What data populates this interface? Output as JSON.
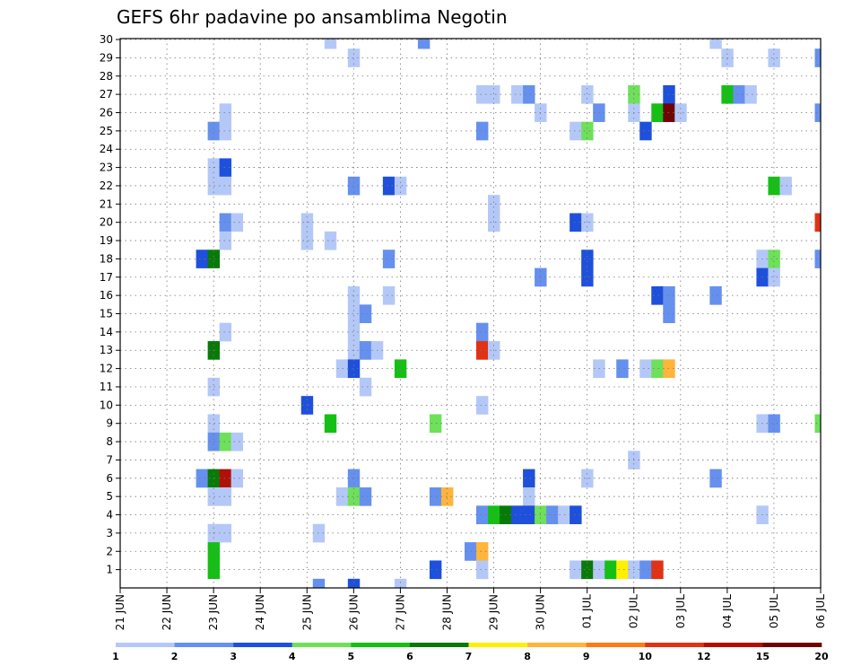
{
  "chart_data": {
    "type": "heatmap",
    "title": "GEFS 6hr padavine po ansamblima Negotin",
    "y_member_labels": [
      "1",
      "2",
      "3",
      "4",
      "5",
      "6",
      "7",
      "8",
      "9",
      "10",
      "11",
      "12",
      "13",
      "14",
      "15",
      "16",
      "17",
      "18",
      "19",
      "20",
      "21",
      "22",
      "23",
      "24",
      "25",
      "26",
      "27",
      "28",
      "29",
      "30"
    ],
    "x_tick_labels": [
      "21 JUN",
      "22 JUN",
      "23 JUN",
      "24 JUN",
      "25 JUN",
      "26 JUN",
      "27 JUN",
      "28 JUN",
      "29 JUN",
      "30 JUN",
      "01 JUL",
      "02 JUL",
      "03 JUL",
      "04 JUL",
      "05 JUL",
      "06 JUL"
    ],
    "colorbar_labels": [
      "1",
      "2",
      "3",
      "4",
      "5",
      "6",
      "7",
      "8",
      "9",
      "10",
      "12",
      "15",
      "20"
    ],
    "bin_colors": [
      "#b4c8f8",
      "#6690ee",
      "#1e50dc",
      "#6ee05a",
      "#14c014",
      "#087a08",
      "#fff000",
      "#ffb43c",
      "#ff7a14",
      "#e03214",
      "#b01008",
      "#6e0404"
    ],
    "grid": true,
    "cells": [
      {
        "member": 30,
        "day": 4.5,
        "bin": 0
      },
      {
        "member": 30,
        "day": 6.5,
        "bin": 1
      },
      {
        "member": 30,
        "day": 12.75,
        "bin": 0
      },
      {
        "member": 29,
        "day": 5.0,
        "bin": 0
      },
      {
        "member": 29,
        "day": 13.0,
        "bin": 0
      },
      {
        "member": 29,
        "day": 14.0,
        "bin": 0
      },
      {
        "member": 29,
        "day": 15.0,
        "bin": 1
      },
      {
        "member": 27,
        "day": 7.75,
        "bin": 0
      },
      {
        "member": 27,
        "day": 8.0,
        "bin": 0
      },
      {
        "member": 27,
        "day": 8.5,
        "bin": 0
      },
      {
        "member": 27,
        "day": 8.75,
        "bin": 1
      },
      {
        "member": 27,
        "day": 10.0,
        "bin": 0
      },
      {
        "member": 27,
        "day": 11.0,
        "bin": 3
      },
      {
        "member": 27,
        "day": 11.75,
        "bin": 2
      },
      {
        "member": 27,
        "day": 13.0,
        "bin": 4
      },
      {
        "member": 27,
        "day": 13.25,
        "bin": 1
      },
      {
        "member": 27,
        "day": 13.5,
        "bin": 0
      },
      {
        "member": 26,
        "day": 2.25,
        "bin": 0
      },
      {
        "member": 26,
        "day": 9.0,
        "bin": 0
      },
      {
        "member": 26,
        "day": 10.25,
        "bin": 1
      },
      {
        "member": 26,
        "day": 11.0,
        "bin": 0
      },
      {
        "member": 26,
        "day": 11.5,
        "bin": 4
      },
      {
        "member": 26,
        "day": 11.75,
        "bin": 11
      },
      {
        "member": 26,
        "day": 12.0,
        "bin": 0
      },
      {
        "member": 26,
        "day": 15.0,
        "bin": 1
      },
      {
        "member": 25,
        "day": 2.0,
        "bin": 1
      },
      {
        "member": 25,
        "day": 2.25,
        "bin": 0
      },
      {
        "member": 25,
        "day": 7.75,
        "bin": 1
      },
      {
        "member": 25,
        "day": 9.75,
        "bin": 0
      },
      {
        "member": 25,
        "day": 10.0,
        "bin": 3
      },
      {
        "member": 25,
        "day": 11.25,
        "bin": 2
      },
      {
        "member": 23,
        "day": 2.0,
        "bin": 0
      },
      {
        "member": 23,
        "day": 2.25,
        "bin": 2
      },
      {
        "member": 22,
        "day": 2.0,
        "bin": 0
      },
      {
        "member": 22,
        "day": 2.25,
        "bin": 0
      },
      {
        "member": 22,
        "day": 5.0,
        "bin": 1
      },
      {
        "member": 22,
        "day": 5.75,
        "bin": 2
      },
      {
        "member": 22,
        "day": 6.0,
        "bin": 0
      },
      {
        "member": 22,
        "day": 14.0,
        "bin": 4
      },
      {
        "member": 22,
        "day": 14.25,
        "bin": 0
      },
      {
        "member": 21,
        "day": 8.0,
        "bin": 0
      },
      {
        "member": 20,
        "day": 2.25,
        "bin": 1
      },
      {
        "member": 20,
        "day": 2.5,
        "bin": 0
      },
      {
        "member": 20,
        "day": 4.0,
        "bin": 0
      },
      {
        "member": 20,
        "day": 8.0,
        "bin": 0
      },
      {
        "member": 20,
        "day": 9.75,
        "bin": 2
      },
      {
        "member": 20,
        "day": 10.0,
        "bin": 0
      },
      {
        "member": 20,
        "day": 15.0,
        "bin": 9
      },
      {
        "member": 19,
        "day": 2.25,
        "bin": 0
      },
      {
        "member": 19,
        "day": 4.0,
        "bin": 0
      },
      {
        "member": 19,
        "day": 4.5,
        "bin": 0
      },
      {
        "member": 18,
        "day": 1.75,
        "bin": 2
      },
      {
        "member": 18,
        "day": 2.0,
        "bin": 5
      },
      {
        "member": 18,
        "day": 5.75,
        "bin": 1
      },
      {
        "member": 18,
        "day": 10.0,
        "bin": 2
      },
      {
        "member": 18,
        "day": 13.75,
        "bin": 0
      },
      {
        "member": 18,
        "day": 14.0,
        "bin": 3
      },
      {
        "member": 18,
        "day": 15.0,
        "bin": 1
      },
      {
        "member": 17,
        "day": 9.0,
        "bin": 1
      },
      {
        "member": 17,
        "day": 10.0,
        "bin": 2
      },
      {
        "member": 17,
        "day": 13.75,
        "bin": 2
      },
      {
        "member": 17,
        "day": 14.0,
        "bin": 0
      },
      {
        "member": 16,
        "day": 5.0,
        "bin": 0
      },
      {
        "member": 16,
        "day": 5.75,
        "bin": 0
      },
      {
        "member": 16,
        "day": 11.5,
        "bin": 2
      },
      {
        "member": 16,
        "day": 11.75,
        "bin": 1
      },
      {
        "member": 16,
        "day": 12.75,
        "bin": 1
      },
      {
        "member": 15,
        "day": 5.0,
        "bin": 0
      },
      {
        "member": 15,
        "day": 5.25,
        "bin": 1
      },
      {
        "member": 15,
        "day": 11.75,
        "bin": 1
      },
      {
        "member": 14,
        "day": 2.25,
        "bin": 0
      },
      {
        "member": 14,
        "day": 5.0,
        "bin": 0
      },
      {
        "member": 14,
        "day": 7.75,
        "bin": 1
      },
      {
        "member": 13,
        "day": 2.0,
        "bin": 5
      },
      {
        "member": 13,
        "day": 5.0,
        "bin": 0
      },
      {
        "member": 13,
        "day": 5.25,
        "bin": 1
      },
      {
        "member": 13,
        "day": 5.5,
        "bin": 0
      },
      {
        "member": 13,
        "day": 7.75,
        "bin": 9
      },
      {
        "member": 13,
        "day": 8.0,
        "bin": 0
      },
      {
        "member": 12,
        "day": 4.75,
        "bin": 0
      },
      {
        "member": 12,
        "day": 5.0,
        "bin": 2
      },
      {
        "member": 12,
        "day": 6.0,
        "bin": 4
      },
      {
        "member": 12,
        "day": 10.25,
        "bin": 0
      },
      {
        "member": 12,
        "day": 10.75,
        "bin": 1
      },
      {
        "member": 12,
        "day": 11.25,
        "bin": 0
      },
      {
        "member": 12,
        "day": 11.5,
        "bin": 3
      },
      {
        "member": 12,
        "day": 11.75,
        "bin": 7
      },
      {
        "member": 11,
        "day": 2.0,
        "bin": 0
      },
      {
        "member": 11,
        "day": 5.25,
        "bin": 0
      },
      {
        "member": 10,
        "day": 4.0,
        "bin": 2
      },
      {
        "member": 10,
        "day": 7.75,
        "bin": 0
      },
      {
        "member": 9,
        "day": 2.0,
        "bin": 0
      },
      {
        "member": 9,
        "day": 4.5,
        "bin": 4
      },
      {
        "member": 9,
        "day": 6.75,
        "bin": 3
      },
      {
        "member": 9,
        "day": 13.75,
        "bin": 0
      },
      {
        "member": 9,
        "day": 14.0,
        "bin": 1
      },
      {
        "member": 9,
        "day": 15.0,
        "bin": 3
      },
      {
        "member": 8,
        "day": 2.0,
        "bin": 1
      },
      {
        "member": 8,
        "day": 2.25,
        "bin": 3
      },
      {
        "member": 8,
        "day": 2.5,
        "bin": 0
      },
      {
        "member": 7,
        "day": 11.0,
        "bin": 0
      },
      {
        "member": 6,
        "day": 1.75,
        "bin": 1
      },
      {
        "member": 6,
        "day": 2.0,
        "bin": 5
      },
      {
        "member": 6,
        "day": 2.25,
        "bin": 10
      },
      {
        "member": 6,
        "day": 2.5,
        "bin": 0
      },
      {
        "member": 6,
        "day": 5.0,
        "bin": 1
      },
      {
        "member": 6,
        "day": 8.75,
        "bin": 2
      },
      {
        "member": 6,
        "day": 10.0,
        "bin": 0
      },
      {
        "member": 6,
        "day": 12.75,
        "bin": 1
      },
      {
        "member": 5,
        "day": 2.0,
        "bin": 0
      },
      {
        "member": 5,
        "day": 2.25,
        "bin": 0
      },
      {
        "member": 5,
        "day": 4.75,
        "bin": 0
      },
      {
        "member": 5,
        "day": 5.0,
        "bin": 3
      },
      {
        "member": 5,
        "day": 5.25,
        "bin": 1
      },
      {
        "member": 5,
        "day": 6.75,
        "bin": 1
      },
      {
        "member": 5,
        "day": 7.0,
        "bin": 7
      },
      {
        "member": 5,
        "day": 8.75,
        "bin": 0
      },
      {
        "member": 4,
        "day": 7.75,
        "bin": 1
      },
      {
        "member": 4,
        "day": 8.0,
        "bin": 4
      },
      {
        "member": 4,
        "day": 8.25,
        "bin": 5
      },
      {
        "member": 4,
        "day": 8.5,
        "bin": 2
      },
      {
        "member": 4,
        "day": 8.75,
        "bin": 2
      },
      {
        "member": 4,
        "day": 9.0,
        "bin": 3
      },
      {
        "member": 4,
        "day": 9.25,
        "bin": 1
      },
      {
        "member": 4,
        "day": 9.5,
        "bin": 0
      },
      {
        "member": 4,
        "day": 9.75,
        "bin": 2
      },
      {
        "member": 4,
        "day": 13.75,
        "bin": 0
      },
      {
        "member": 3,
        "day": 2.0,
        "bin": 0
      },
      {
        "member": 3,
        "day": 2.25,
        "bin": 0
      },
      {
        "member": 3,
        "day": 4.25,
        "bin": 0
      },
      {
        "member": 2,
        "day": 2.0,
        "bin": 4
      },
      {
        "member": 2,
        "day": 7.5,
        "bin": 1
      },
      {
        "member": 2,
        "day": 7.75,
        "bin": 7
      },
      {
        "member": 1,
        "day": 2.0,
        "bin": 4
      },
      {
        "member": 1,
        "day": 6.75,
        "bin": 2
      },
      {
        "member": 1,
        "day": 7.75,
        "bin": 0
      },
      {
        "member": 1,
        "day": 9.75,
        "bin": 0
      },
      {
        "member": 1,
        "day": 10.0,
        "bin": 5
      },
      {
        "member": 1,
        "day": 10.25,
        "bin": 0
      },
      {
        "member": 1,
        "day": 10.5,
        "bin": 4
      },
      {
        "member": 1,
        "day": 10.75,
        "bin": 6
      },
      {
        "member": 1,
        "day": 11.0,
        "bin": 0
      },
      {
        "member": 1,
        "day": 11.25,
        "bin": 1
      },
      {
        "member": 1,
        "day": 11.5,
        "bin": 9
      },
      {
        "member": 0,
        "day": 4.25,
        "bin": 1
      },
      {
        "member": 0,
        "day": 5.0,
        "bin": 2
      },
      {
        "member": 0,
        "day": 6.0,
        "bin": 0
      }
    ]
  }
}
